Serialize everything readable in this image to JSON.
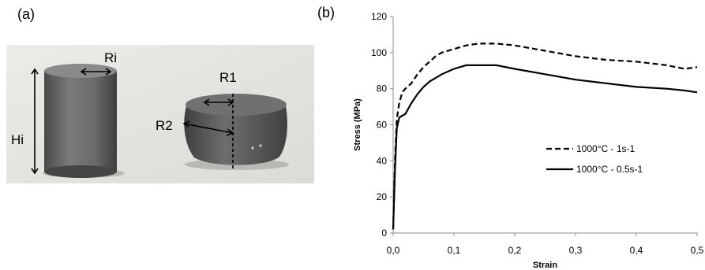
{
  "panels": {
    "a_label": "(a)",
    "b_label": "(b)"
  },
  "photo": {
    "labels": {
      "ri": "Ri",
      "hi": "Hi",
      "r1": "R1",
      "r2": "R2"
    },
    "colors": {
      "background": "#e7e6e2",
      "metal": "#5d5d5d"
    }
  },
  "chart_data": {
    "type": "line",
    "title": "",
    "xlabel": "Strain",
    "ylabel": "Stress (MPa)",
    "xlim": [
      0,
      0.5
    ],
    "ylim": [
      0,
      120
    ],
    "xticks": [
      0,
      0.1,
      0.2,
      0.3,
      0.4,
      0.5
    ],
    "xtick_labels": [
      "0,0",
      "0,1",
      "0,2",
      "0,3",
      "0,4",
      "0,5"
    ],
    "yticks": [
      0,
      20,
      40,
      60,
      80,
      100,
      120
    ],
    "ytick_labels": [
      "0",
      "20",
      "40",
      "60",
      "80",
      "100",
      "120"
    ],
    "grid": false,
    "legend_position": "right",
    "series": [
      {
        "name": "1000°C - 1s-1",
        "style": "dashed",
        "color": "#000000",
        "x": [
          0.0,
          0.003,
          0.006,
          0.01,
          0.015,
          0.02,
          0.03,
          0.04,
          0.05,
          0.06,
          0.07,
          0.08,
          0.1,
          0.12,
          0.14,
          0.15,
          0.17,
          0.2,
          0.25,
          0.3,
          0.35,
          0.4,
          0.45,
          0.48,
          0.5
        ],
        "y": [
          2,
          40,
          63,
          72,
          78,
          80,
          83,
          88,
          92,
          95,
          98,
          100,
          102,
          104,
          105,
          105,
          105,
          104,
          101,
          98,
          96,
          95,
          93,
          91,
          92
        ]
      },
      {
        "name": "1000°C - 0.5s-1",
        "style": "solid",
        "color": "#000000",
        "x": [
          0.0,
          0.003,
          0.006,
          0.01,
          0.015,
          0.02,
          0.03,
          0.04,
          0.05,
          0.06,
          0.07,
          0.08,
          0.1,
          0.12,
          0.13,
          0.15,
          0.17,
          0.2,
          0.25,
          0.3,
          0.35,
          0.4,
          0.45,
          0.48,
          0.5
        ],
        "y": [
          2,
          35,
          58,
          64,
          65,
          66,
          72,
          77,
          81,
          84,
          86,
          88,
          91,
          93,
          93,
          93,
          93,
          91,
          88,
          85,
          83,
          81,
          80,
          79,
          78
        ]
      }
    ]
  }
}
